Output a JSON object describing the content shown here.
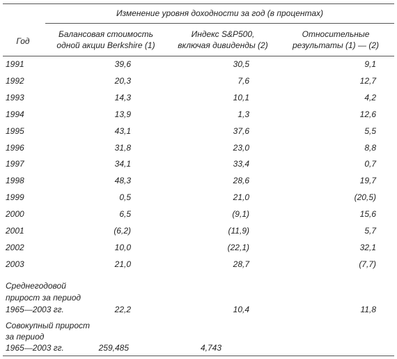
{
  "header": {
    "group_title": "Изменение уровня доходности за год (в процентах)",
    "columns": [
      [
        "Год"
      ],
      [
        "Балансовая стоимость",
        "одной акции Berkshire (1)"
      ],
      [
        "Индекс S&P500,",
        "включая дивиденды (2)"
      ],
      [
        "Относительные",
        "результаты (1) — (2)"
      ]
    ]
  },
  "rows": [
    [
      "1991",
      "39,6",
      "30,5",
      "9,1"
    ],
    [
      "1992",
      "20,3",
      "7,6",
      "12,7"
    ],
    [
      "1993",
      "14,3",
      "10,1",
      "4,2"
    ],
    [
      "1994",
      "13,9",
      "1,3",
      "12,6"
    ],
    [
      "1995",
      "43,1",
      "37,6",
      "5,5"
    ],
    [
      "1996",
      "31,8",
      "23,0",
      "8,8"
    ],
    [
      "1997",
      "34,1",
      "33,4",
      "0,7"
    ],
    [
      "1998",
      "48,3",
      "28,6",
      "19,7"
    ],
    [
      "1999",
      "0,5",
      "21,0",
      "(20,5)"
    ],
    [
      "2000",
      "6,5",
      "(9,1)",
      "15,6"
    ],
    [
      "2001",
      "(6,2)",
      "(11,9)",
      "5,7"
    ],
    [
      "2002",
      "10,0",
      "(22,1)",
      "32,1"
    ],
    [
      "2003",
      "21,0",
      "28,7",
      "(7,7)"
    ]
  ],
  "summary": [
    {
      "label": [
        "Среднегодовой",
        "прирост за период",
        "1965—2003 гг."
      ],
      "values": [
        "22,2",
        "10,4",
        "11,8"
      ]
    },
    {
      "label": [
        "Совокупный прирост",
        "за период",
        "1965—2003 гг."
      ],
      "values": [
        "259,485",
        "4,743"
      ]
    }
  ]
}
